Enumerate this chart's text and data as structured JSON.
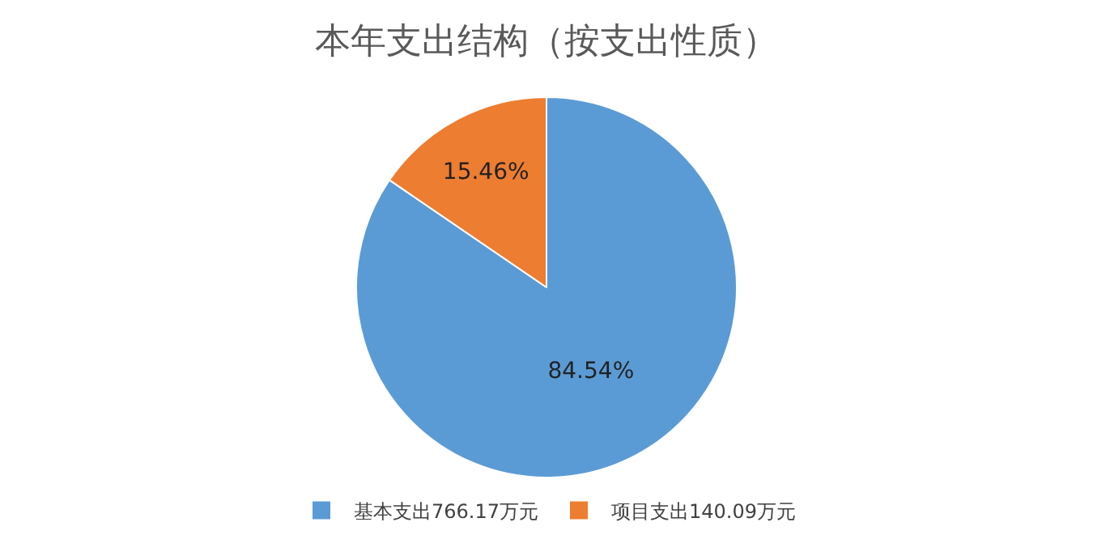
{
  "chart_data": {
    "type": "pie",
    "title": "本年支出结构（按支出性质）",
    "categories": [
      "基本支出766.17万元",
      "项目支出140.09万元"
    ],
    "values": [
      84.54,
      15.46
    ],
    "colors": [
      "#5b9bd5",
      "#ed7d31"
    ],
    "value_labels": [
      "84.54%",
      "15.46%"
    ],
    "legend": "bottom"
  }
}
